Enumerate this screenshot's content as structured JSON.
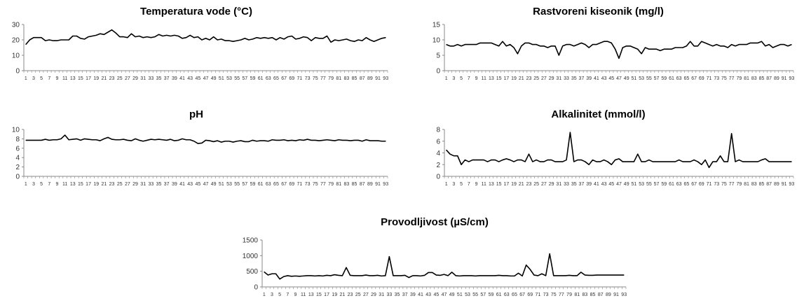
{
  "chart_data": [
    {
      "type": "line",
      "title": "Temperatura vode (°C)",
      "xlabel": "",
      "ylabel": "",
      "ylim": [
        0,
        30
      ],
      "yticks": [
        0,
        10,
        20,
        30
      ],
      "x": [
        1,
        2,
        3,
        4,
        5,
        6,
        7,
        8,
        9,
        10,
        11,
        12,
        13,
        14,
        15,
        16,
        17,
        18,
        19,
        20,
        21,
        22,
        23,
        24,
        25,
        26,
        27,
        28,
        29,
        30,
        31,
        32,
        33,
        34,
        35,
        36,
        37,
        38,
        39,
        40,
        41,
        42,
        43,
        44,
        45,
        46,
        47,
        48,
        49,
        50,
        51,
        52,
        53,
        54,
        55,
        56,
        57,
        58,
        59,
        60,
        61,
        62,
        63,
        64,
        65,
        66,
        67,
        68,
        69,
        70,
        71,
        72,
        73,
        74,
        75,
        76,
        77,
        78,
        79,
        80,
        81,
        82,
        83,
        84,
        85,
        86,
        87,
        88,
        89,
        90,
        91,
        92,
        93
      ],
      "xtick_labels": [
        "1",
        "3",
        "5",
        "7",
        "9",
        "11",
        "13",
        "15",
        "17",
        "19",
        "21",
        "23",
        "25",
        "27",
        "29",
        "31",
        "33",
        "35",
        "37",
        "39",
        "41",
        "43",
        "45",
        "47",
        "49",
        "51",
        "53",
        "55",
        "57",
        "59",
        "61",
        "63",
        "65",
        "67",
        "69",
        "71",
        "73",
        "75",
        "77",
        "79",
        "81",
        "83",
        "85",
        "87",
        "89",
        "91",
        "93"
      ],
      "grid": false,
      "series": [
        {
          "values": [
            17,
            20,
            21.5,
            21.5,
            21.5,
            19.5,
            20,
            19.5,
            19.5,
            20,
            20,
            20,
            22.5,
            22.5,
            21,
            20.5,
            22,
            22.5,
            23,
            24,
            23.5,
            25,
            26.5,
            24.5,
            22,
            22,
            21.5,
            24,
            22,
            22.5,
            21.5,
            22,
            21.5,
            22,
            23.5,
            22.5,
            23,
            22.5,
            23,
            22.5,
            21,
            21.5,
            23,
            21.5,
            22,
            20,
            21,
            20,
            22,
            20,
            20.5,
            19.5,
            19.5,
            19,
            19.5,
            20,
            21,
            20,
            20.5,
            21.5,
            21,
            21.5,
            21,
            21.5,
            20,
            21.5,
            20.5,
            22,
            22.5,
            20.5,
            21,
            22,
            21.5,
            19.5,
            21.5,
            21,
            21,
            22.5,
            18.5,
            20,
            19.5,
            20,
            20.5,
            19.5,
            19,
            20,
            19.5,
            21.5,
            20,
            19,
            20,
            21,
            21.5
          ]
        }
      ]
    },
    {
      "type": "line",
      "title": "Rastvoreni kiseonik (mg/l)",
      "xlabel": "",
      "ylabel": "",
      "ylim": [
        0,
        15
      ],
      "yticks": [
        0,
        5,
        10,
        15
      ],
      "x": [
        1,
        2,
        3,
        4,
        5,
        6,
        7,
        8,
        9,
        10,
        11,
        12,
        13,
        14,
        15,
        16,
        17,
        18,
        19,
        20,
        21,
        22,
        23,
        24,
        25,
        26,
        27,
        28,
        29,
        30,
        31,
        32,
        33,
        34,
        35,
        36,
        37,
        38,
        39,
        40,
        41,
        42,
        43,
        44,
        45,
        46,
        47,
        48,
        49,
        50,
        51,
        52,
        53,
        54,
        55,
        56,
        57,
        58,
        59,
        60,
        61,
        62,
        63,
        64,
        65,
        66,
        67,
        68,
        69,
        70,
        71,
        72,
        73,
        74,
        75,
        76,
        77,
        78,
        79,
        80,
        81,
        82,
        83,
        84,
        85,
        86,
        87,
        88,
        89,
        90,
        91,
        92,
        93
      ],
      "xtick_labels": [
        "1",
        "3",
        "5",
        "7",
        "9",
        "11",
        "13",
        "15",
        "17",
        "19",
        "21",
        "23",
        "25",
        "27",
        "29",
        "31",
        "33",
        "35",
        "37",
        "39",
        "41",
        "43",
        "45",
        "47",
        "49",
        "51",
        "53",
        "55",
        "57",
        "59",
        "61",
        "63",
        "65",
        "67",
        "69",
        "71",
        "73",
        "75",
        "77",
        "79",
        "81",
        "83",
        "85",
        "87",
        "89",
        "91",
        "93"
      ],
      "grid": false,
      "series": [
        {
          "values": [
            8.5,
            8,
            8,
            8.5,
            8,
            8.5,
            8.5,
            8.5,
            8.5,
            9,
            9,
            9,
            9,
            8.5,
            8,
            9.5,
            8,
            8.5,
            7.5,
            5.5,
            8,
            9,
            9,
            8.5,
            8.5,
            8,
            8,
            7.5,
            8,
            8,
            5,
            8,
            8.5,
            8.5,
            8,
            8.5,
            9,
            8.5,
            7.5,
            8.5,
            8.5,
            9,
            9.5,
            9.5,
            9,
            7,
            4,
            7.5,
            8,
            8,
            7.5,
            7,
            5.5,
            7.5,
            7,
            7,
            7,
            6.5,
            7,
            7,
            7,
            7.5,
            7.5,
            7.5,
            8,
            9.5,
            8,
            8,
            9.5,
            9,
            8.5,
            8,
            8.5,
            8,
            8,
            7.5,
            8.5,
            8,
            8.5,
            8.5,
            8.5,
            9,
            9,
            9,
            9.5,
            8,
            8.5,
            7.5,
            8,
            8.5,
            8.5,
            8,
            8.5
          ]
        }
      ]
    },
    {
      "type": "line",
      "title": "pH",
      "xlabel": "",
      "ylabel": "",
      "ylim": [
        0,
        10
      ],
      "yticks": [
        0,
        2,
        4,
        6,
        8,
        10
      ],
      "x": [
        1,
        2,
        3,
        4,
        5,
        6,
        7,
        8,
        9,
        10,
        11,
        12,
        13,
        14,
        15,
        16,
        17,
        18,
        19,
        20,
        21,
        22,
        23,
        24,
        25,
        26,
        27,
        28,
        29,
        30,
        31,
        32,
        33,
        34,
        35,
        36,
        37,
        38,
        39,
        40,
        41,
        42,
        43,
        44,
        45,
        46,
        47,
        48,
        49,
        50,
        51,
        52,
        53,
        54,
        55,
        56,
        57,
        58,
        59,
        60,
        61,
        62,
        63,
        64,
        65,
        66,
        67,
        68,
        69,
        70,
        71,
        72,
        73,
        74,
        75,
        76,
        77,
        78,
        79,
        80,
        81,
        82,
        83,
        84,
        85,
        86,
        87,
        88,
        89,
        90,
        91,
        92,
        93
      ],
      "xtick_labels": [
        "1",
        "3",
        "5",
        "7",
        "9",
        "11",
        "13",
        "15",
        "17",
        "19",
        "21",
        "23",
        "25",
        "27",
        "29",
        "31",
        "33",
        "35",
        "37",
        "39",
        "41",
        "43",
        "45",
        "47",
        "49",
        "51",
        "53",
        "55",
        "57",
        "59",
        "61",
        "63",
        "65",
        "67",
        "69",
        "71",
        "73",
        "75",
        "77",
        "79",
        "81",
        "83",
        "85",
        "87",
        "89",
        "91",
        "93"
      ],
      "grid": false,
      "series": [
        {
          "values": [
            7.7,
            7.7,
            7.7,
            7.7,
            7.7,
            7.9,
            7.7,
            7.8,
            7.8,
            8,
            8.8,
            7.8,
            7.9,
            8,
            7.7,
            8,
            7.9,
            7.8,
            7.8,
            7.6,
            8,
            8.3,
            7.9,
            7.8,
            7.8,
            7.9,
            7.7,
            7.6,
            8,
            7.7,
            7.5,
            7.7,
            7.9,
            7.8,
            7.9,
            7.8,
            7.7,
            7.9,
            7.6,
            7.7,
            8,
            7.8,
            7.8,
            7.5,
            7,
            7.1,
            7.7,
            7.6,
            7.4,
            7.6,
            7.3,
            7.5,
            7.5,
            7.3,
            7.5,
            7.6,
            7.4,
            7.4,
            7.7,
            7.5,
            7.6,
            7.6,
            7.5,
            7.8,
            7.7,
            7.7,
            7.8,
            7.6,
            7.7,
            7.6,
            7.8,
            7.7,
            7.9,
            7.7,
            7.7,
            7.6,
            7.7,
            7.8,
            7.7,
            7.6,
            7.8,
            7.7,
            7.7,
            7.6,
            7.7,
            7.7,
            7.5,
            7.8,
            7.6,
            7.6,
            7.6,
            7.5,
            7.5
          ]
        }
      ]
    },
    {
      "type": "line",
      "title": "Alkalinitet (mmol/l)",
      "xlabel": "",
      "ylabel": "",
      "ylim": [
        0,
        8
      ],
      "yticks": [
        0,
        2,
        4,
        6,
        8
      ],
      "x": [
        1,
        2,
        3,
        4,
        5,
        6,
        7,
        8,
        9,
        10,
        11,
        12,
        13,
        14,
        15,
        16,
        17,
        18,
        19,
        20,
        21,
        22,
        23,
        24,
        25,
        26,
        27,
        28,
        29,
        30,
        31,
        32,
        33,
        34,
        35,
        36,
        37,
        38,
        39,
        40,
        41,
        42,
        43,
        44,
        45,
        46,
        47,
        48,
        49,
        50,
        51,
        52,
        53,
        54,
        55,
        56,
        57,
        58,
        59,
        60,
        61,
        62,
        63,
        64,
        65,
        66,
        67,
        68,
        69,
        70,
        71,
        72,
        73,
        74,
        75,
        76,
        77,
        78,
        79,
        80,
        81,
        82,
        83,
        84,
        85,
        86,
        87,
        88,
        89,
        90,
        91,
        92,
        93
      ],
      "xtick_labels": [
        "1",
        "3",
        "5",
        "7",
        "9",
        "11",
        "13",
        "15",
        "17",
        "19",
        "21",
        "23",
        "25",
        "27",
        "29",
        "31",
        "33",
        "35",
        "37",
        "39",
        "41",
        "43",
        "45",
        "47",
        "49",
        "51",
        "53",
        "55",
        "57",
        "59",
        "61",
        "63",
        "65",
        "67",
        "69",
        "71",
        "73",
        "75",
        "77",
        "79",
        "81",
        "83",
        "85",
        "87",
        "89",
        "91",
        "93"
      ],
      "grid": false,
      "series": [
        {
          "values": [
            4.5,
            3.8,
            3.5,
            3.5,
            2,
            2.8,
            2.5,
            2.8,
            2.8,
            2.8,
            2.8,
            2.5,
            2.8,
            2.8,
            2.5,
            2.8,
            3,
            2.8,
            2.5,
            2.8,
            2.8,
            2.5,
            3.8,
            2.5,
            2.8,
            2.5,
            2.5,
            2.8,
            2.8,
            2.5,
            2.5,
            2.5,
            2.8,
            7.5,
            2.5,
            2.8,
            2.8,
            2.5,
            2,
            2.8,
            2.5,
            2.5,
            2.8,
            2.5,
            2,
            2.8,
            3,
            2.5,
            2.5,
            2.5,
            2.5,
            3.8,
            2.5,
            2.5,
            2.8,
            2.5,
            2.5,
            2.5,
            2.5,
            2.5,
            2.5,
            2.5,
            2.8,
            2.5,
            2.5,
            2.5,
            2.8,
            2.5,
            2,
            2.8,
            1.5,
            2.5,
            2.5,
            3.5,
            2.5,
            2.5,
            7.3,
            2.5,
            2.8,
            2.5,
            2.5,
            2.5,
            2.5,
            2.5,
            2.8,
            3,
            2.5,
            2.5,
            2.5,
            2.5,
            2.5,
            2.5,
            2.5
          ]
        }
      ]
    },
    {
      "type": "line",
      "title": "Provodljivost (µS/cm)",
      "xlabel": "",
      "ylabel": "",
      "ylim": [
        0,
        1500
      ],
      "yticks": [
        0,
        500,
        1000,
        1500
      ],
      "x": [
        1,
        2,
        3,
        4,
        5,
        6,
        7,
        8,
        9,
        10,
        11,
        12,
        13,
        14,
        15,
        16,
        17,
        18,
        19,
        20,
        21,
        22,
        23,
        24,
        25,
        26,
        27,
        28,
        29,
        30,
        31,
        32,
        33,
        34,
        35,
        36,
        37,
        38,
        39,
        40,
        41,
        42,
        43,
        44,
        45,
        46,
        47,
        48,
        49,
        50,
        51,
        52,
        53,
        54,
        55,
        56,
        57,
        58,
        59,
        60,
        61,
        62,
        63,
        64,
        65,
        66,
        67,
        68,
        69,
        70,
        71,
        72,
        73,
        74,
        75,
        76,
        77,
        78,
        79,
        80,
        81,
        82,
        83,
        84,
        85,
        86,
        87,
        88,
        89,
        90,
        91,
        92,
        93
      ],
      "xtick_labels": [
        "1",
        "3",
        "5",
        "7",
        "9",
        "11",
        "13",
        "15",
        "17",
        "19",
        "21",
        "23",
        "25",
        "27",
        "29",
        "31",
        "33",
        "35",
        "37",
        "39",
        "41",
        "43",
        "45",
        "47",
        "49",
        "51",
        "53",
        "55",
        "57",
        "59",
        "61",
        "63",
        "65",
        "67",
        "69",
        "71",
        "73",
        "75",
        "77",
        "79",
        "81",
        "83",
        "85",
        "87",
        "89",
        "91",
        "93"
      ],
      "grid": false,
      "series": [
        {
          "values": [
            480,
            380,
            420,
            420,
            250,
            330,
            360,
            340,
            350,
            340,
            350,
            360,
            360,
            350,
            360,
            350,
            370,
            360,
            390,
            370,
            360,
            620,
            370,
            360,
            360,
            360,
            380,
            360,
            360,
            370,
            350,
            360,
            970,
            360,
            360,
            360,
            370,
            300,
            360,
            360,
            350,
            370,
            460,
            460,
            380,
            370,
            400,
            360,
            470,
            360,
            350,
            360,
            360,
            360,
            350,
            360,
            360,
            360,
            360,
            360,
            370,
            360,
            360,
            350,
            350,
            440,
            350,
            700,
            560,
            380,
            360,
            420,
            360,
            1060,
            360,
            360,
            360,
            360,
            370,
            360,
            360,
            470,
            380,
            370,
            370,
            380,
            380,
            380,
            380,
            380,
            380,
            380,
            380
          ]
        }
      ]
    }
  ]
}
